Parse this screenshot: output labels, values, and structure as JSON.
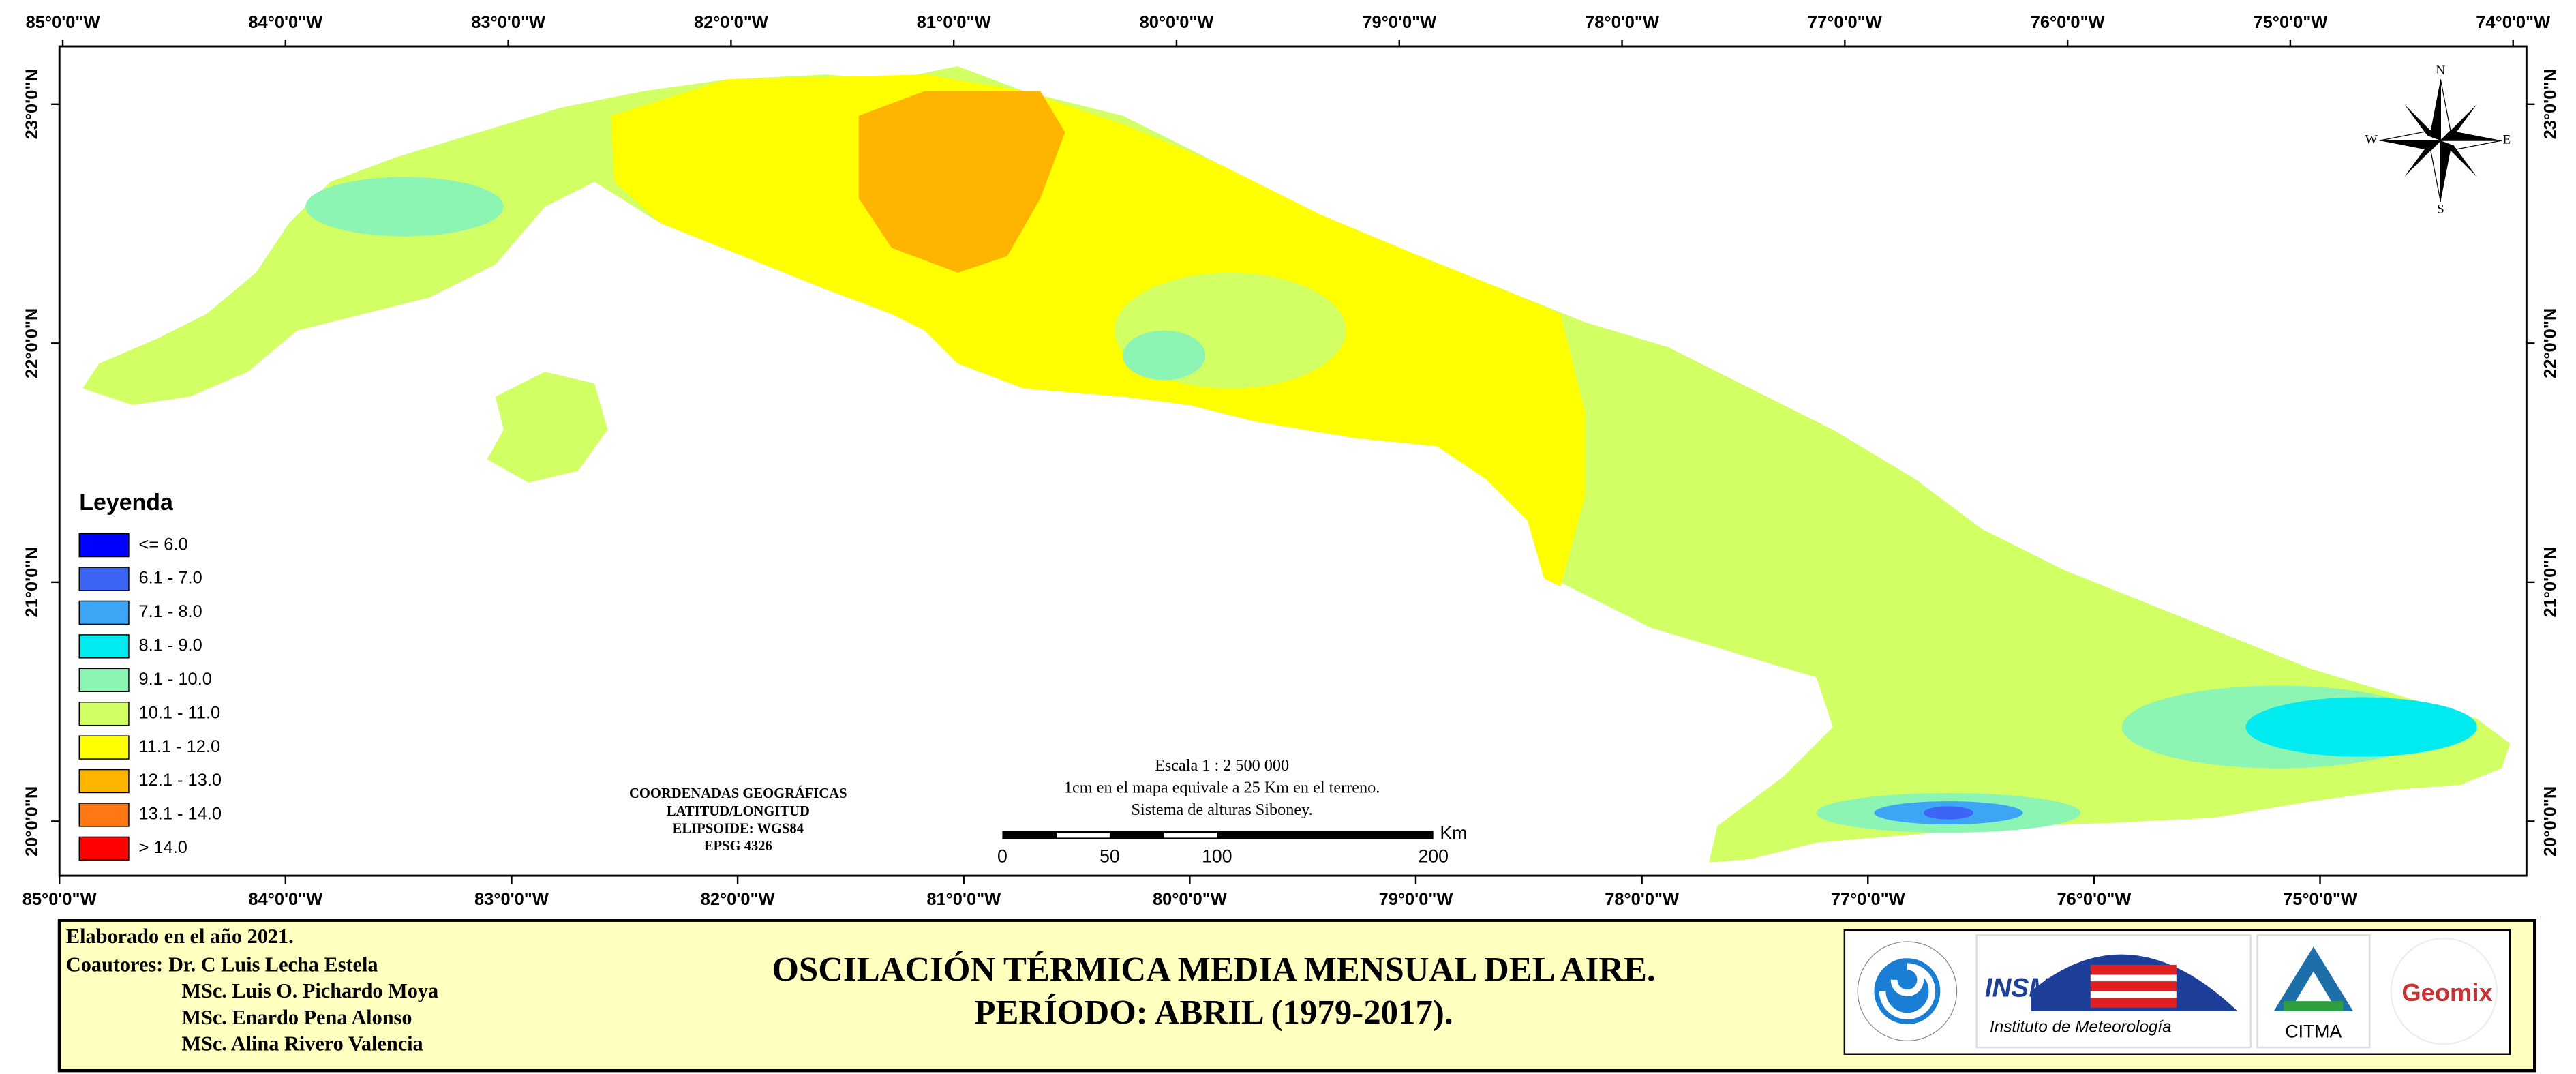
{
  "map": {
    "longitude_labels_top": [
      "85°0'0\"W",
      "84°0'0\"W",
      "83°0'0\"W",
      "82°0'0\"W",
      "81°0'0\"W",
      "80°0'0\"W",
      "79°0'0\"W",
      "78°0'0\"W",
      "77°0'0\"W",
      "76°0'0\"W",
      "75°0'0\"W",
      "74°0'0\"W"
    ],
    "longitude_labels_bottom": [
      "85°0'0\"W",
      "84°0'0\"W",
      "83°0'0\"W",
      "82°0'0\"W",
      "81°0'0\"W",
      "80°0'0\"W",
      "79°0'0\"W",
      "78°0'0\"W",
      "77°0'0\"W",
      "76°0'0\"W",
      "75°0'0\"W"
    ],
    "latitude_labels_left": [
      "23°0'0\"N",
      "22°0'0\"N",
      "21°0'0\"N",
      "20°0'0\"N"
    ],
    "latitude_labels_right": [
      "23°0'0\"N",
      "22°0'0\"N",
      "21°0'0\"N",
      "20°0'0\"N"
    ],
    "compass": {
      "north": "N",
      "south": "S",
      "east": "E",
      "west": "W"
    },
    "legend": {
      "title": "Leyenda",
      "items": [
        {
          "label": "<= 6.0",
          "color": "#0000ff"
        },
        {
          "label": "6.1 - 7.0",
          "color": "#3c64f5"
        },
        {
          "label": "7.1 - 8.0",
          "color": "#3ca5f5"
        },
        {
          "label": "8.1 - 9.0",
          "color": "#00ebf0"
        },
        {
          "label": "9.1 - 10.0",
          "color": "#8cf5b4"
        },
        {
          "label": "10.1 - 11.0",
          "color": "#d2ff64"
        },
        {
          "label": "11.1 - 12.0",
          "color": "#ffff00"
        },
        {
          "label": "12.1 - 13.0",
          "color": "#ffb400"
        },
        {
          "label": "13.1 - 14.0",
          "color": "#ff7814"
        },
        {
          "label": "> 14.0",
          "color": "#ff0000"
        }
      ]
    },
    "coordinates_note": [
      "COORDENADAS GEOGRÁFICAS",
      "LATITUD/LONGITUD",
      "ELIPSOIDE: WGS84",
      "EPSG 4326"
    ],
    "scale": {
      "lines": [
        "Escala 1 : 2 500 000",
        "1cm en el mapa equivale a 25 Km en el terreno.",
        "Sistema de alturas Siboney."
      ],
      "ticks": [
        0,
        50,
        100,
        200
      ],
      "unit": "Km"
    }
  },
  "footer": {
    "made": "Elaborado en el año 2021.",
    "coauthors_label": "Coautores:",
    "coauthors": [
      "Dr. C Luis Lecha Estela",
      "MSc. Luis O. Pichardo Moya",
      "MSc. Enardo Pena Alonso",
      "MSc. Alina Rivero Valencia"
    ],
    "title": [
      "OSCILACIÓN TÉRMICA MEDIA MENSUAL DEL AIRE.",
      "PERÍODO: ABRIL (1979-2017)."
    ],
    "logos": {
      "insmet": "INSMET",
      "insmet_sub": "Instituto de Meteorología",
      "citma": "CITMA",
      "geomix": "Geomix"
    }
  }
}
